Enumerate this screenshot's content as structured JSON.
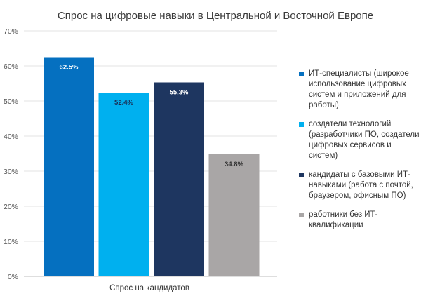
{
  "chart_data": {
    "type": "bar",
    "title": "Спрос на цифровые навыки в Центральной и Восточной Европе",
    "xlabel": "",
    "ylabel": "",
    "categories": [
      "Спрос на кандидатов"
    ],
    "ylim": [
      0,
      70
    ],
    "yticks": [
      "0%",
      "10%",
      "20%",
      "30%",
      "40%",
      "50%",
      "60%",
      "70%"
    ],
    "grid": true,
    "legend_position": "right",
    "series": [
      {
        "name": "ИТ-специалисты (широкое использование цифровых систем и приложений для работы)",
        "values": [
          62.5
        ],
        "label": "62.5%",
        "color": "#0570c0",
        "label_color": "#ffffff"
      },
      {
        "name": "создатели технологий (разработчики ПО, создатели цифровых сервисов и систем)",
        "values": [
          52.4
        ],
        "label": "52.4%",
        "color": "#00b0ef",
        "label_color": "#1a2a50"
      },
      {
        "name": "кандидаты с базовыми ИТ-навыками (работа с почтой, браузером, офисным ПО)",
        "values": [
          55.3
        ],
        "label": "55.3%",
        "color": "#1e3660",
        "label_color": "#ffffff"
      },
      {
        "name": "работники без ИТ-квалификации",
        "values": [
          34.8
        ],
        "label": "34.8%",
        "color": "#a9a6a6",
        "label_color": "#333333"
      }
    ]
  }
}
